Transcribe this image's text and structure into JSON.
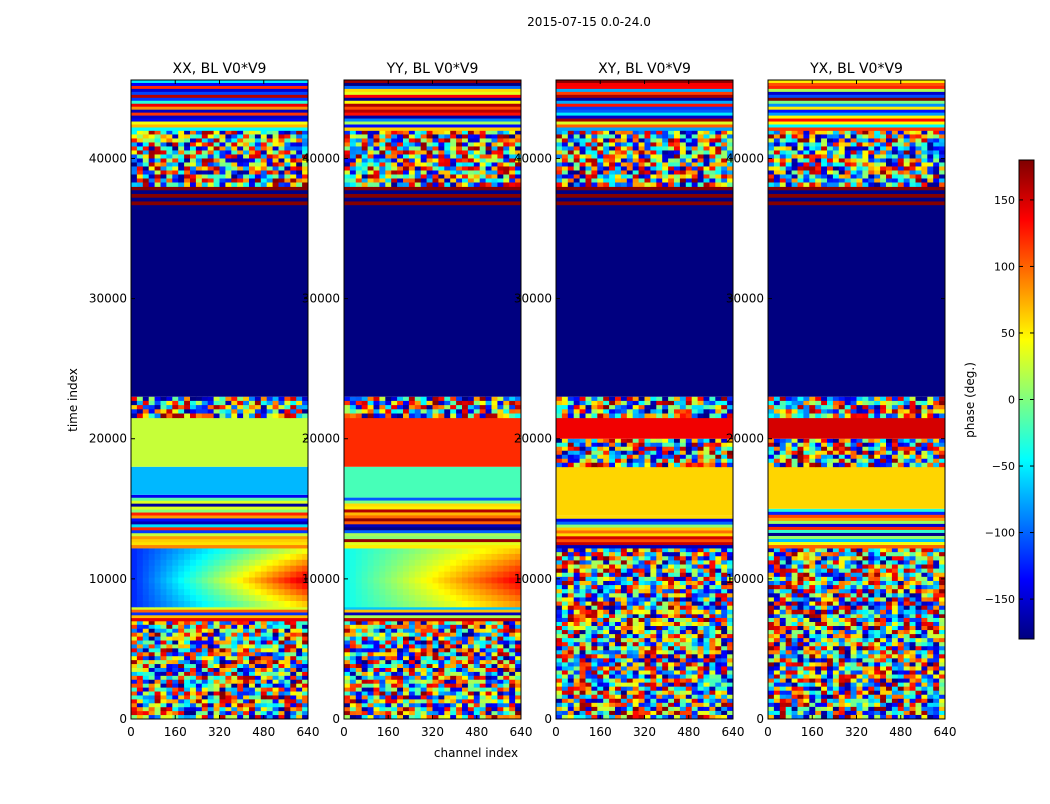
{
  "chart_data": {
    "type": "heatmap",
    "suptitle": "2015-07-15 0.0-24.0",
    "xlabel": "channel index",
    "ylabel": "time index",
    "xlim": [
      0,
      640
    ],
    "ylim": [
      0,
      45600
    ],
    "x_ticks": [
      0,
      160,
      320,
      480,
      640
    ],
    "y_ticks": [
      0,
      10000,
      20000,
      30000,
      40000
    ],
    "colorbar": {
      "label": "phase (deg.)",
      "range": [
        -180,
        180
      ],
      "ticks": [
        150,
        100,
        50,
        0,
        -50,
        -100,
        -150
      ],
      "tick_labels": [
        "150",
        "100",
        "50",
        "0",
        "−50",
        "−100",
        "−150"
      ],
      "colormap": "jet",
      "colors": [
        "#00007f",
        "#0000ff",
        "#0080ff",
        "#00ffff",
        "#80ff80",
        "#ffff00",
        "#ff8000",
        "#ff0000",
        "#7f0000"
      ]
    },
    "panels": [
      {
        "title": "XX, BL V0*V9",
        "segments": [
          {
            "t0": 0,
            "t1": 7000,
            "pattern": "noise"
          },
          {
            "t0": 7000,
            "t1": 8000,
            "pattern": "stripes"
          },
          {
            "t0": 8000,
            "t1": 12200,
            "pattern": "gradient",
            "phase_start": -120,
            "phase_end": 150
          },
          {
            "t0": 12200,
            "t1": 16000,
            "pattern": "stripes"
          },
          {
            "t0": 16000,
            "t1": 18000,
            "phase": -70
          },
          {
            "t0": 18000,
            "t1": 21500,
            "phase": 25
          },
          {
            "t0": 21500,
            "t1": 23000,
            "pattern": "noise"
          },
          {
            "t0": 23000,
            "t1": 36400,
            "phase": -180
          },
          {
            "t0": 36400,
            "t1": 38000,
            "pattern": "red_stripes"
          },
          {
            "t0": 38000,
            "t1": 42000,
            "pattern": "noise"
          },
          {
            "t0": 42000,
            "t1": 45600,
            "pattern": "stripes"
          }
        ]
      },
      {
        "title": "YY, BL V0*V9",
        "segments": [
          {
            "t0": 0,
            "t1": 7000,
            "pattern": "noise"
          },
          {
            "t0": 7000,
            "t1": 8000,
            "pattern": "stripes"
          },
          {
            "t0": 8000,
            "t1": 12200,
            "pattern": "gradient",
            "phase_start": -40,
            "phase_end": 140
          },
          {
            "t0": 12200,
            "t1": 15800,
            "pattern": "stripes"
          },
          {
            "t0": 15800,
            "t1": 18000,
            "phase": -20
          },
          {
            "t0": 18000,
            "t1": 21500,
            "phase": 120
          },
          {
            "t0": 21500,
            "t1": 23000,
            "pattern": "noise"
          },
          {
            "t0": 23000,
            "t1": 36400,
            "phase": -180
          },
          {
            "t0": 36400,
            "t1": 38000,
            "pattern": "red_stripes"
          },
          {
            "t0": 38000,
            "t1": 42000,
            "pattern": "noise"
          },
          {
            "t0": 42000,
            "t1": 45600,
            "pattern": "stripes"
          }
        ]
      },
      {
        "title": "XY, BL V0*V9",
        "segments": [
          {
            "t0": 0,
            "t1": 7500,
            "pattern": "noise"
          },
          {
            "t0": 7500,
            "t1": 12200,
            "pattern": "noise"
          },
          {
            "t0": 12200,
            "t1": 14500,
            "pattern": "stripes"
          },
          {
            "t0": 14500,
            "t1": 18000,
            "phase": 60
          },
          {
            "t0": 18000,
            "t1": 20000,
            "pattern": "noise"
          },
          {
            "t0": 20000,
            "t1": 21500,
            "phase": 140
          },
          {
            "t0": 21500,
            "t1": 23000,
            "pattern": "noise"
          },
          {
            "t0": 23000,
            "t1": 36400,
            "phase": -180
          },
          {
            "t0": 36400,
            "t1": 38000,
            "pattern": "red_stripes"
          },
          {
            "t0": 38000,
            "t1": 42000,
            "pattern": "noise"
          },
          {
            "t0": 42000,
            "t1": 45600,
            "pattern": "stripes"
          }
        ]
      },
      {
        "title": "YX, BL V0*V9",
        "segments": [
          {
            "t0": 0,
            "t1": 7500,
            "pattern": "noise"
          },
          {
            "t0": 7500,
            "t1": 12200,
            "pattern": "noise"
          },
          {
            "t0": 12200,
            "t1": 15000,
            "pattern": "stripes"
          },
          {
            "t0": 15000,
            "t1": 18000,
            "phase": 60
          },
          {
            "t0": 18000,
            "t1": 20000,
            "pattern": "noise"
          },
          {
            "t0": 20000,
            "t1": 21500,
            "phase": 150
          },
          {
            "t0": 21500,
            "t1": 23000,
            "pattern": "noise"
          },
          {
            "t0": 23000,
            "t1": 36400,
            "phase": -180
          },
          {
            "t0": 36400,
            "t1": 38000,
            "pattern": "red_stripes"
          },
          {
            "t0": 38000,
            "t1": 42000,
            "pattern": "noise"
          },
          {
            "t0": 42000,
            "t1": 45600,
            "pattern": "stripes"
          }
        ]
      }
    ]
  }
}
